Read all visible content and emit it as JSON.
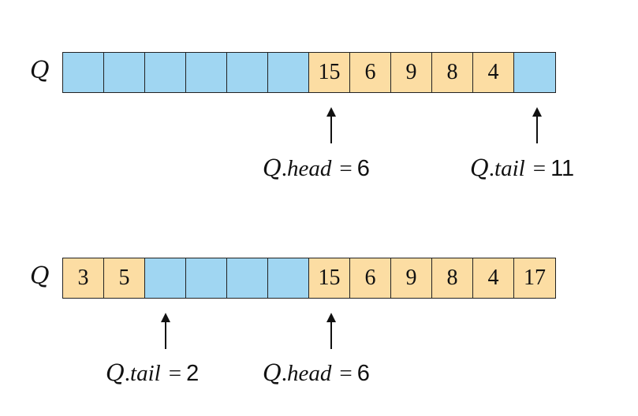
{
  "colors": {
    "empty": "#a0d6f2",
    "filled": "#fcdda3",
    "border": "#222222"
  },
  "top": {
    "label": "Q",
    "cells": [
      "",
      "",
      "",
      "",
      "",
      "",
      "15",
      "6",
      "9",
      "8",
      "4",
      ""
    ],
    "filled": [
      false,
      false,
      false,
      false,
      false,
      false,
      true,
      true,
      true,
      true,
      true,
      false
    ],
    "head": {
      "q": "Q",
      "dot": ".",
      "field": "head",
      "eq": "=",
      "value": "6"
    },
    "tail": {
      "q": "Q",
      "dot": ".",
      "field": "tail",
      "eq": "=",
      "value": "11"
    }
  },
  "bottom": {
    "label": "Q",
    "cells": [
      "3",
      "5",
      "",
      "",
      "",
      "",
      "15",
      "6",
      "9",
      "8",
      "4",
      "17"
    ],
    "filled": [
      true,
      true,
      false,
      false,
      false,
      false,
      true,
      true,
      true,
      true,
      true,
      true
    ],
    "tail": {
      "q": "Q",
      "dot": ".",
      "field": "tail",
      "eq": "=",
      "value": "2"
    },
    "head": {
      "q": "Q",
      "dot": ".",
      "field": "head",
      "eq": "=",
      "value": "6"
    }
  }
}
